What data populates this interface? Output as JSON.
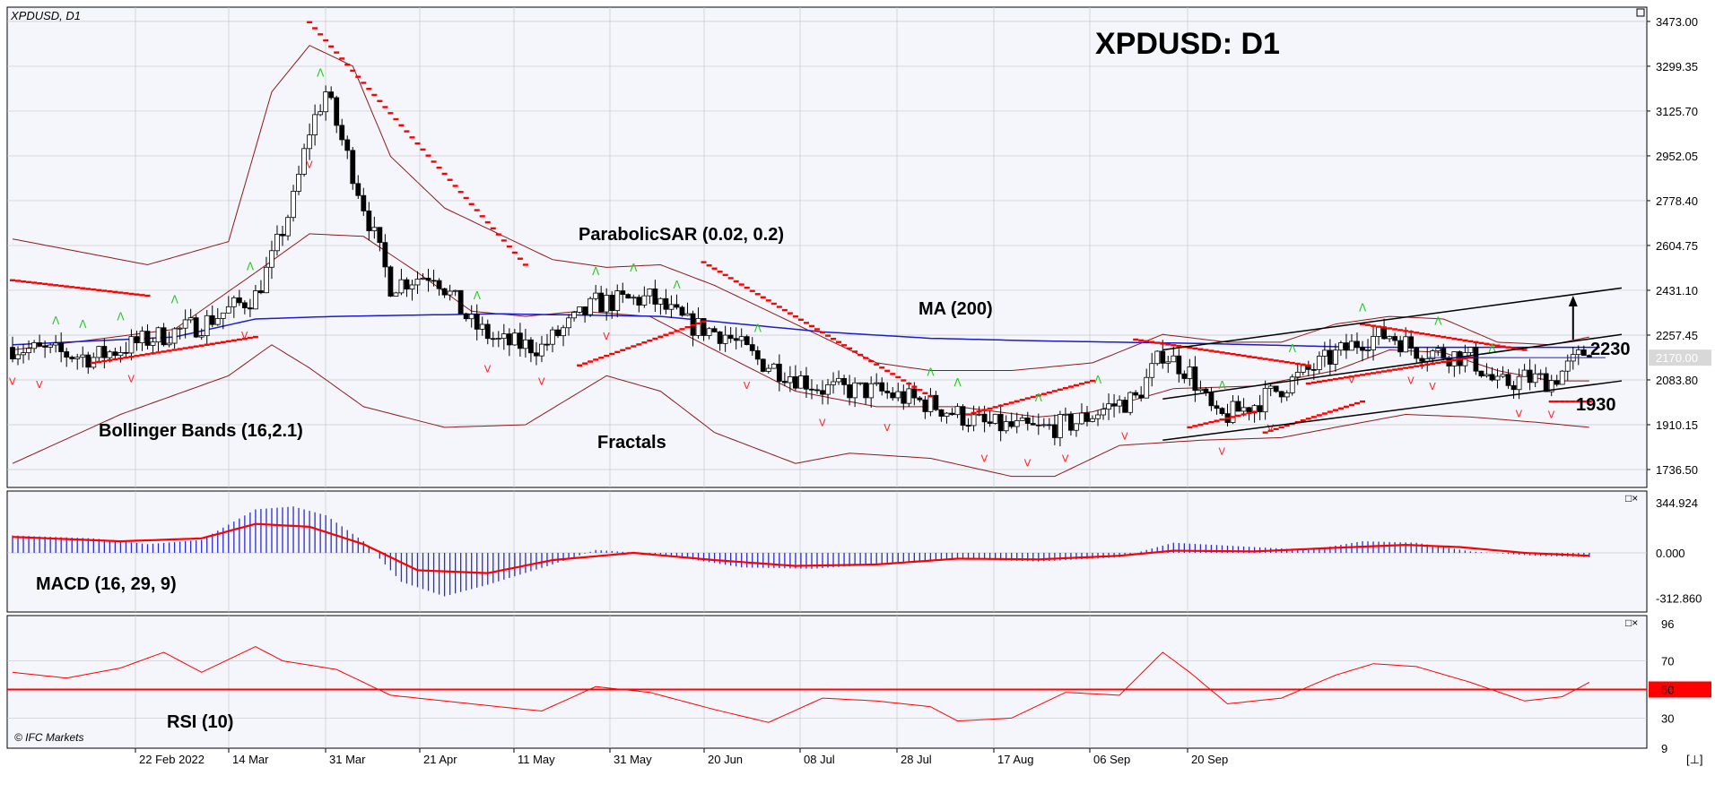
{
  "symbol_label": "XPDUSD, D1",
  "title": "XPDUSD: D1",
  "copyright": "© IFC Markets",
  "colors": {
    "background": "#ffffff",
    "plot_bg": "#f5f6fb",
    "grid": "#c8c8c8",
    "candle": "#000000",
    "bollinger": "#8b1a1a",
    "ma": "#1c1ccf",
    "sar": "#ff0000",
    "fractal_up": "#22cc22",
    "fractal_down": "#ff2222",
    "macd_hist": "#2b2bd6",
    "macd_signal": "#ff0000",
    "rsi_line": "#ff0000",
    "price_label_bg": "#d8d8d8",
    "rsi50_label_bg": "#ff0000"
  },
  "price_axis": {
    "ticks": [
      "3473.00",
      "3299.35",
      "3125.70",
      "2952.05",
      "2778.40",
      "2604.75",
      "2431.10",
      "2257.45",
      "2083.80",
      "1910.15",
      "1736.50"
    ],
    "current": "2170.00"
  },
  "macd_axis": {
    "ticks": [
      "344.924",
      "0.000",
      "-312.860"
    ]
  },
  "rsi_axis": {
    "ticks": [
      "96",
      "70",
      "50",
      "30",
      "9"
    ]
  },
  "date_ticks": [
    "22 Feb 2022",
    "14 Mar",
    "31 Mar",
    "21 Apr",
    "11 May",
    "31 May",
    "20 Jun",
    "08 Jul",
    "28 Jul",
    "17 Aug",
    "06 Sep",
    "20 Sep"
  ],
  "annotations": {
    "psar": "ParabolicSAR (0.02, 0.2)",
    "ma": "MA (200)",
    "bollinger": "Bollinger Bands (16,2.1)",
    "fractals": "Fractals",
    "level_high": "2230",
    "level_low": "1930",
    "macd": "MACD (16, 29, 9)",
    "rsi": "RSI (10)"
  },
  "chart_data": {
    "type": "candlestick",
    "symbol": "XPDUSD",
    "timeframe": "D1",
    "ylim": [
      1700,
      3520
    ],
    "levels": [
      2230,
      1930
    ],
    "close_path": [
      [
        0,
        2210
      ],
      [
        15,
        2170
      ],
      [
        25,
        2240
      ],
      [
        35,
        2300
      ],
      [
        45,
        2410
      ],
      [
        48,
        2550
      ],
      [
        52,
        2780
      ],
      [
        55,
        3050
      ],
      [
        58,
        3200
      ],
      [
        62,
        2950
      ],
      [
        66,
        2700
      ],
      [
        70,
        2450
      ],
      [
        78,
        2500
      ],
      [
        85,
        2300
      ],
      [
        90,
        2230
      ],
      [
        98,
        2210
      ],
      [
        108,
        2380
      ],
      [
        118,
        2400
      ],
      [
        125,
        2300
      ],
      [
        132,
        2260
      ],
      [
        138,
        2160
      ],
      [
        150,
        2050
      ],
      [
        160,
        2040
      ],
      [
        170,
        1990
      ],
      [
        180,
        1910
      ],
      [
        190,
        1890
      ],
      [
        197,
        1920
      ],
      [
        203,
        1980
      ],
      [
        208,
        2010
      ],
      [
        213,
        2190
      ],
      [
        218,
        2110
      ],
      [
        223,
        1930
      ],
      [
        230,
        1990
      ],
      [
        240,
        2120
      ],
      [
        250,
        2240
      ],
      [
        255,
        2260
      ],
      [
        260,
        2200
      ],
      [
        270,
        2170
      ],
      [
        275,
        2060
      ],
      [
        280,
        2090
      ],
      [
        285,
        2080
      ],
      [
        289,
        2150
      ],
      [
        292,
        2210
      ]
    ],
    "ma200": [
      [
        0,
        2220
      ],
      [
        30,
        2250
      ],
      [
        45,
        2320
      ],
      [
        60,
        2330
      ],
      [
        90,
        2340
      ],
      [
        120,
        2330
      ],
      [
        150,
        2270
      ],
      [
        170,
        2245
      ],
      [
        190,
        2235
      ],
      [
        220,
        2225
      ],
      [
        250,
        2210
      ],
      [
        280,
        2210
      ],
      [
        292,
        2210
      ]
    ],
    "bollinger_upper": [
      [
        0,
        2630
      ],
      [
        25,
        2530
      ],
      [
        40,
        2620
      ],
      [
        48,
        3200
      ],
      [
        55,
        3380
      ],
      [
        63,
        3300
      ],
      [
        70,
        2950
      ],
      [
        80,
        2750
      ],
      [
        90,
        2650
      ],
      [
        100,
        2550
      ],
      [
        110,
        2520
      ],
      [
        120,
        2530
      ],
      [
        130,
        2450
      ],
      [
        145,
        2300
      ],
      [
        160,
        2150
      ],
      [
        170,
        2120
      ],
      [
        185,
        2120
      ],
      [
        200,
        2150
      ],
      [
        213,
        2260
      ],
      [
        225,
        2230
      ],
      [
        235,
        2230
      ],
      [
        245,
        2300
      ],
      [
        255,
        2330
      ],
      [
        265,
        2320
      ],
      [
        275,
        2230
      ],
      [
        285,
        2220
      ],
      [
        292,
        2250
      ]
    ],
    "bollinger_mid": [
      [
        0,
        2200
      ],
      [
        30,
        2280
      ],
      [
        45,
        2500
      ],
      [
        55,
        2650
      ],
      [
        65,
        2640
      ],
      [
        75,
        2500
      ],
      [
        85,
        2350
      ],
      [
        95,
        2330
      ],
      [
        105,
        2350
      ],
      [
        118,
        2330
      ],
      [
        130,
        2200
      ],
      [
        145,
        2040
      ],
      [
        160,
        1980
      ],
      [
        175,
        1980
      ],
      [
        190,
        1940
      ],
      [
        200,
        1960
      ],
      [
        215,
        2050
      ],
      [
        230,
        2060
      ],
      [
        245,
        2120
      ],
      [
        255,
        2200
      ],
      [
        265,
        2190
      ],
      [
        275,
        2120
      ],
      [
        285,
        2080
      ],
      [
        292,
        2080
      ]
    ],
    "bollinger_lower": [
      [
        0,
        1760
      ],
      [
        20,
        1950
      ],
      [
        40,
        2100
      ],
      [
        48,
        2220
      ],
      [
        55,
        2130
      ],
      [
        65,
        1980
      ],
      [
        80,
        1900
      ],
      [
        95,
        1910
      ],
      [
        110,
        2100
      ],
      [
        120,
        2040
      ],
      [
        130,
        1880
      ],
      [
        145,
        1760
      ],
      [
        155,
        1800
      ],
      [
        170,
        1780
      ],
      [
        185,
        1710
      ],
      [
        193,
        1710
      ],
      [
        205,
        1830
      ],
      [
        220,
        1850
      ],
      [
        235,
        1860
      ],
      [
        245,
        1900
      ],
      [
        258,
        1950
      ],
      [
        270,
        1940
      ],
      [
        282,
        1920
      ],
      [
        292,
        1900
      ]
    ],
    "sar_segments": [
      {
        "x": [
          0,
          25
        ],
        "y": [
          2470,
          2410
        ]
      },
      {
        "x": [
          15,
          45
        ],
        "y": [
          2150,
          2250
        ]
      },
      {
        "x": [
          55,
          95
        ],
        "y": [
          3470,
          2530
        ]
      },
      {
        "x": [
          105,
          128
        ],
        "y": [
          2140,
          2310
        ]
      },
      {
        "x": [
          128,
          170
        ],
        "y": [
          2540,
          2020
        ]
      },
      {
        "x": [
          177,
          200
        ],
        "y": [
          1950,
          2080
        ]
      },
      {
        "x": [
          208,
          240
        ],
        "y": [
          2240,
          2140
        ]
      },
      {
        "x": [
          218,
          230
        ],
        "y": [
          1900,
          1960
        ]
      },
      {
        "x": [
          232,
          250
        ],
        "y": [
          1880,
          2000
        ]
      },
      {
        "x": [
          240,
          270
        ],
        "y": [
          2070,
          2170
        ]
      },
      {
        "x": [
          250,
          280
        ],
        "y": [
          2300,
          2200
        ]
      },
      {
        "x": [
          285,
          292
        ],
        "y": [
          2000,
          2000
        ]
      }
    ],
    "channel_lines": [
      {
        "x": [
          213,
          298
        ],
        "y": [
          2200,
          2440
        ]
      },
      {
        "x": [
          213,
          298
        ],
        "y": [
          2010,
          2260
        ]
      },
      {
        "x": [
          213,
          298
        ],
        "y": [
          1850,
          2080
        ]
      }
    ],
    "arrow_up": {
      "x": 289,
      "y_from": 2240,
      "y_to": 2410
    },
    "macd_hist": [
      [
        0,
        120
      ],
      [
        15,
        100
      ],
      [
        25,
        60
      ],
      [
        35,
        90
      ],
      [
        45,
        300
      ],
      [
        52,
        320
      ],
      [
        58,
        260
      ],
      [
        65,
        80
      ],
      [
        72,
        -200
      ],
      [
        80,
        -300
      ],
      [
        88,
        -220
      ],
      [
        100,
        -80
      ],
      [
        108,
        20
      ],
      [
        120,
        -10
      ],
      [
        135,
        -100
      ],
      [
        148,
        -110
      ],
      [
        160,
        -80
      ],
      [
        175,
        -40
      ],
      [
        190,
        -60
      ],
      [
        205,
        -30
      ],
      [
        215,
        70
      ],
      [
        225,
        50
      ],
      [
        240,
        20
      ],
      [
        250,
        80
      ],
      [
        260,
        70
      ],
      [
        270,
        10
      ],
      [
        282,
        -20
      ],
      [
        292,
        -30
      ]
    ],
    "macd_signal": [
      [
        0,
        110
      ],
      [
        20,
        80
      ],
      [
        35,
        100
      ],
      [
        45,
        200
      ],
      [
        55,
        180
      ],
      [
        65,
        60
      ],
      [
        75,
        -120
      ],
      [
        88,
        -140
      ],
      [
        100,
        -50
      ],
      [
        115,
        0
      ],
      [
        130,
        -50
      ],
      [
        145,
        -90
      ],
      [
        160,
        -80
      ],
      [
        175,
        -40
      ],
      [
        190,
        -45
      ],
      [
        205,
        -20
      ],
      [
        215,
        15
      ],
      [
        230,
        10
      ],
      [
        245,
        35
      ],
      [
        258,
        55
      ],
      [
        268,
        40
      ],
      [
        280,
        0
      ],
      [
        292,
        -20
      ]
    ],
    "macd_ylim": [
      -370,
      345
    ],
    "rsi": [
      [
        0,
        62
      ],
      [
        10,
        58
      ],
      [
        20,
        65
      ],
      [
        28,
        76
      ],
      [
        35,
        62
      ],
      [
        45,
        80
      ],
      [
        50,
        70
      ],
      [
        60,
        64
      ],
      [
        70,
        46
      ],
      [
        80,
        42
      ],
      [
        90,
        38
      ],
      [
        98,
        35
      ],
      [
        108,
        52
      ],
      [
        118,
        48
      ],
      [
        130,
        36
      ],
      [
        140,
        27
      ],
      [
        150,
        44
      ],
      [
        160,
        42
      ],
      [
        170,
        38
      ],
      [
        175,
        28
      ],
      [
        185,
        30
      ],
      [
        195,
        48
      ],
      [
        205,
        46
      ],
      [
        213,
        76
      ],
      [
        218,
        62
      ],
      [
        225,
        40
      ],
      [
        235,
        44
      ],
      [
        245,
        60
      ],
      [
        252,
        68
      ],
      [
        260,
        66
      ],
      [
        270,
        55
      ],
      [
        280,
        42
      ],
      [
        287,
        45
      ],
      [
        292,
        55
      ]
    ],
    "rsi_ylim": [
      9,
      96
    ]
  }
}
